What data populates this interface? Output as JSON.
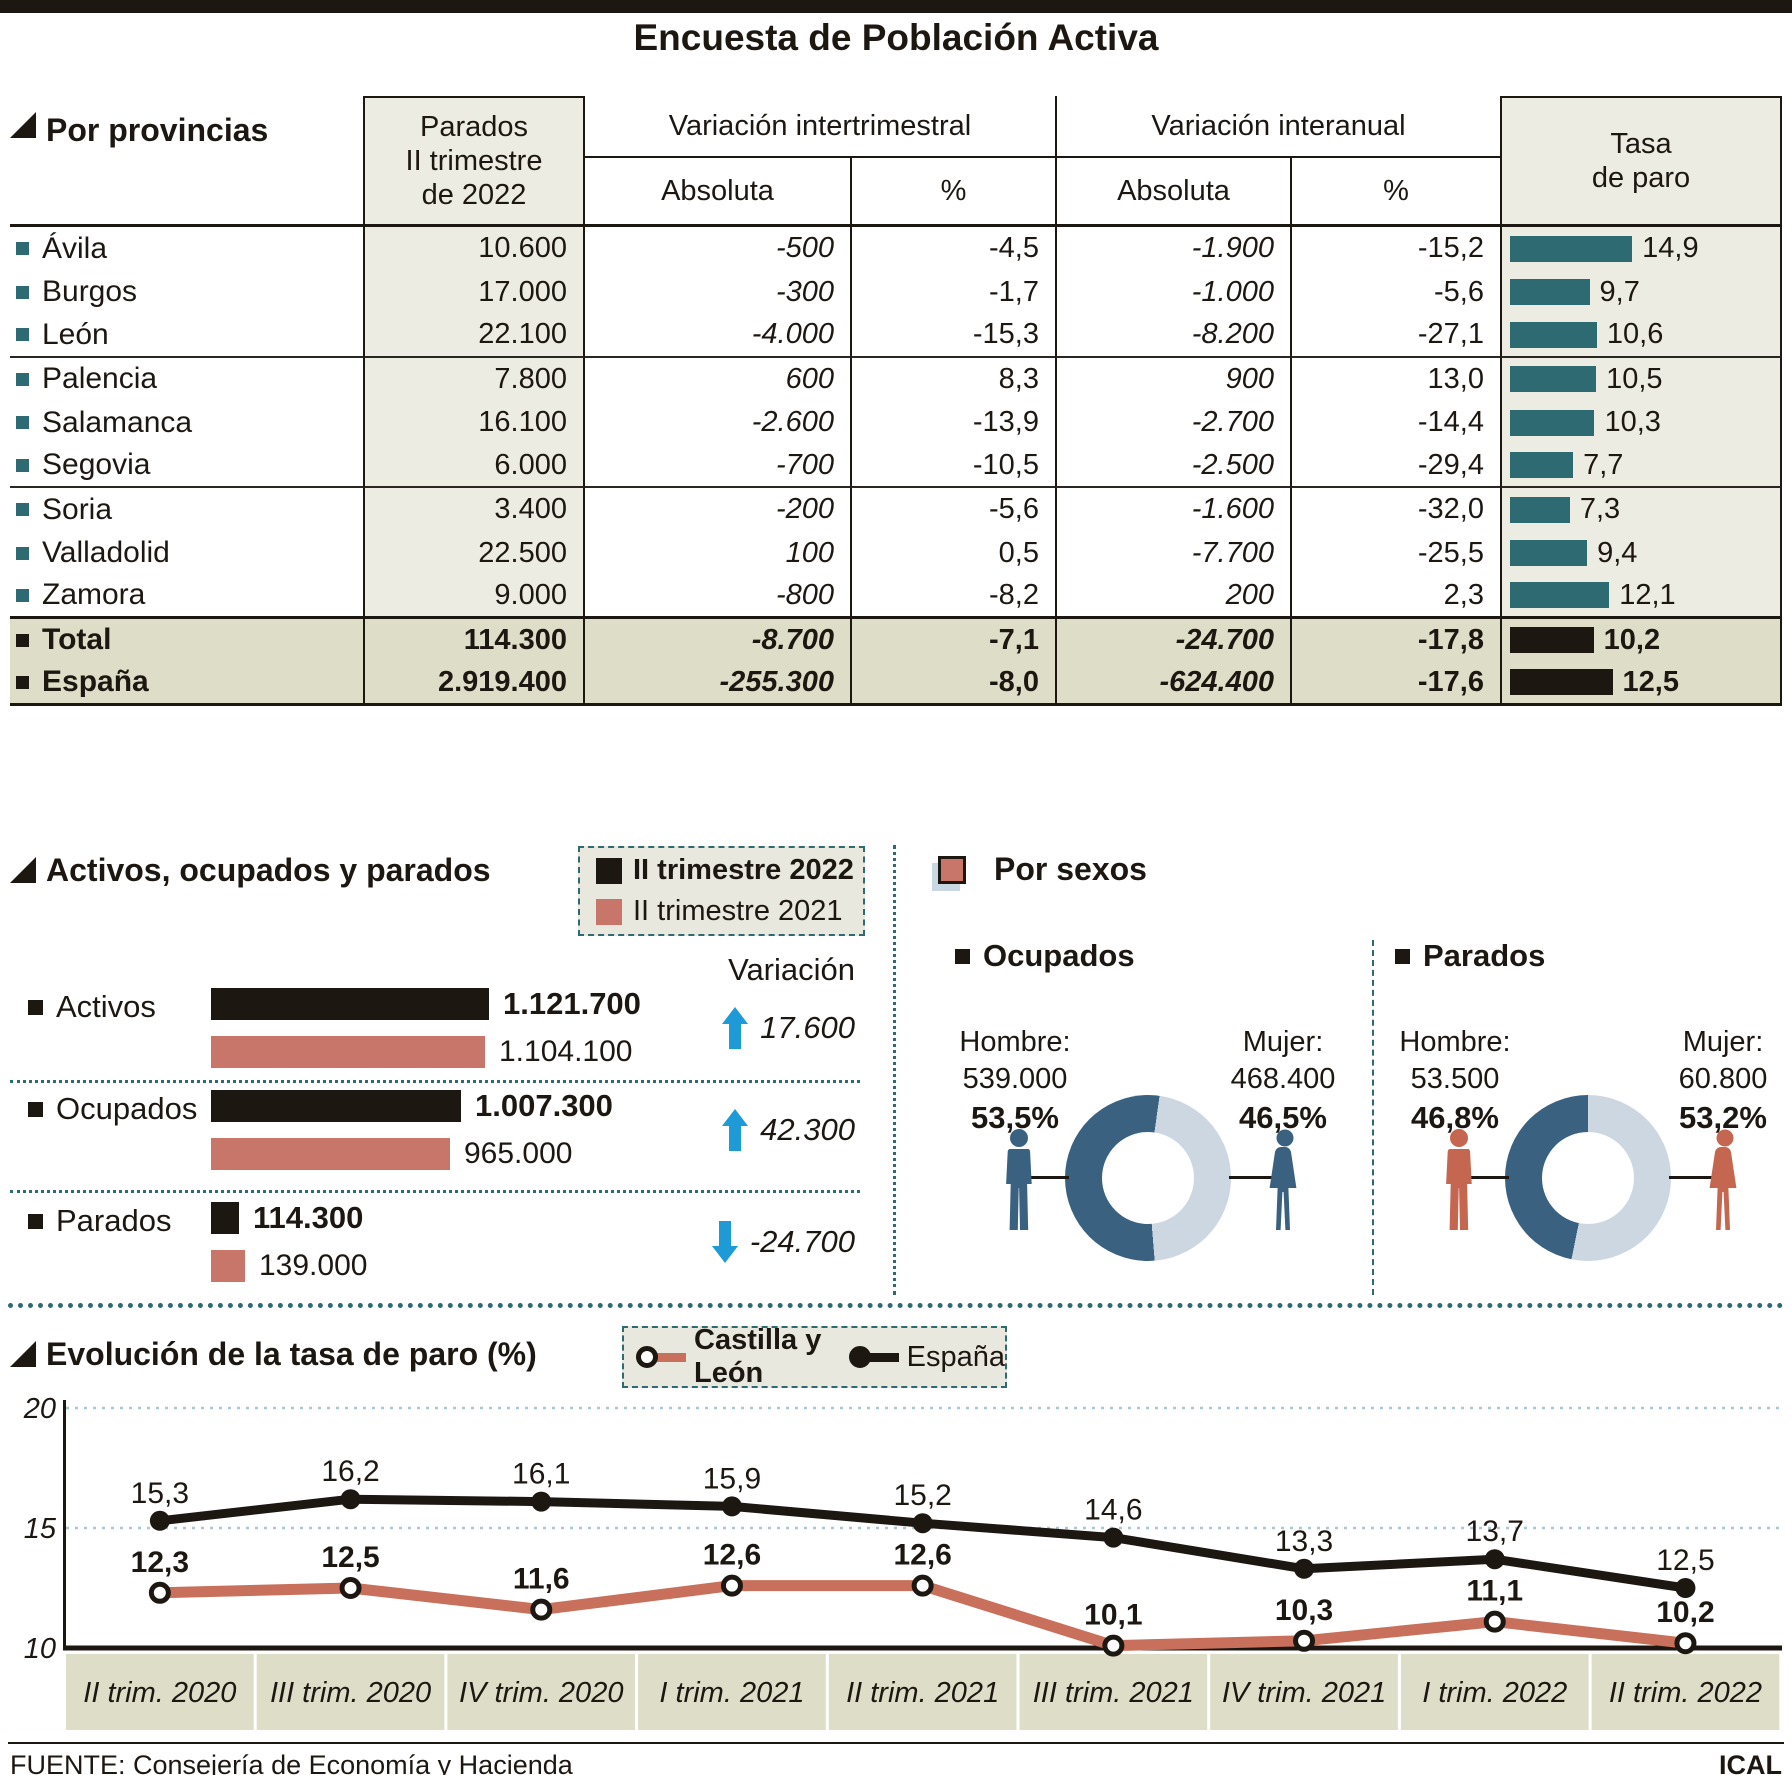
{
  "title": "Encuesta de Población Activa",
  "colors": {
    "ink": "#1d1712",
    "teal": "#2e6a71",
    "beige_light": "#edece2",
    "beige_dark": "#deddc7",
    "legend_bg": "#e9e8de",
    "salmon": "#c8766a",
    "salmon_line": "#c8705c",
    "donut_dark": "#3a6180",
    "donut_light": "#ccd7e1",
    "arrow_blue": "#1e9ad6",
    "grid_blue": "#a9c8d2",
    "silhouette_blue": "#3a6180",
    "silhouette_red": "#c56650"
  },
  "table": {
    "section_title": "Por provincias",
    "headers": {
      "parados": [
        "Parados",
        "II trimestre",
        "de 2022"
      ],
      "group_intertrimestral": "Variación intertrimestral",
      "group_interanual": "Variación interanual",
      "sub_absoluta": "Absoluta",
      "sub_pct": "%",
      "tasa": [
        "Tasa",
        "de paro"
      ]
    },
    "rows": [
      {
        "name": "Ávila",
        "parados": "10.600",
        "vt_abs": "-500",
        "vt_pct": "-4,5",
        "va_abs": "-1.900",
        "va_pct": "-15,2",
        "tasa": 14.9,
        "tasa_label": "14,9",
        "sep": "none",
        "total": false
      },
      {
        "name": "Burgos",
        "parados": "17.000",
        "vt_abs": "-300",
        "vt_pct": "-1,7",
        "va_abs": "-1.000",
        "va_pct": "-5,6",
        "tasa": 9.7,
        "tasa_label": "9,7",
        "sep": "none",
        "total": false
      },
      {
        "name": "León",
        "parados": "22.100",
        "vt_abs": "-4.000",
        "vt_pct": "-15,3",
        "va_abs": "-8.200",
        "va_pct": "-27,1",
        "tasa": 10.6,
        "tasa_label": "10,6",
        "sep": "thin",
        "total": false
      },
      {
        "name": "Palencia",
        "parados": "7.800",
        "vt_abs": "600",
        "vt_pct": "8,3",
        "va_abs": "900",
        "va_pct": "13,0",
        "tasa": 10.5,
        "tasa_label": "10,5",
        "sep": "none",
        "total": false
      },
      {
        "name": "Salamanca",
        "parados": "16.100",
        "vt_abs": "-2.600",
        "vt_pct": "-13,9",
        "va_abs": "-2.700",
        "va_pct": "-14,4",
        "tasa": 10.3,
        "tasa_label": "10,3",
        "sep": "none",
        "total": false
      },
      {
        "name": "Segovia",
        "parados": "6.000",
        "vt_abs": "-700",
        "vt_pct": "-10,5",
        "va_abs": "-2.500",
        "va_pct": "-29,4",
        "tasa": 7.7,
        "tasa_label": "7,7",
        "sep": "thin",
        "total": false
      },
      {
        "name": "Soria",
        "parados": "3.400",
        "vt_abs": "-200",
        "vt_pct": "-5,6",
        "va_abs": "-1.600",
        "va_pct": "-32,0",
        "tasa": 7.3,
        "tasa_label": "7,3",
        "sep": "none",
        "total": false
      },
      {
        "name": "Valladolid",
        "parados": "22.500",
        "vt_abs": "100",
        "vt_pct": "0,5",
        "va_abs": "-7.700",
        "va_pct": "-25,5",
        "tasa": 9.4,
        "tasa_label": "9,4",
        "sep": "none",
        "total": false
      },
      {
        "name": "Zamora",
        "parados": "9.000",
        "vt_abs": "-800",
        "vt_pct": "-8,2",
        "va_abs": "200",
        "va_pct": "2,3",
        "tasa": 12.1,
        "tasa_label": "12,1",
        "sep": "thick",
        "total": false
      },
      {
        "name": "Total",
        "parados": "114.300",
        "vt_abs": "-8.700",
        "vt_pct": "-7,1",
        "va_abs": "-24.700",
        "va_pct": "-17,8",
        "tasa": 10.2,
        "tasa_label": "10,2",
        "sep": "none",
        "total": true
      },
      {
        "name": "España",
        "parados": "2.919.400",
        "vt_abs": "-255.300",
        "vt_pct": "-8,0",
        "va_abs": "-624.400",
        "va_pct": "-17,6",
        "tasa": 12.5,
        "tasa_label": "12,5",
        "sep": "thick",
        "total": true
      }
    ]
  },
  "bars_section": {
    "title": "Activos, ocupados y parados",
    "legend": [
      {
        "label": "II trimestre 2022",
        "bold": true
      },
      {
        "label": "II trimestre 2021",
        "bold": false
      }
    ],
    "variation_heading": "Variación",
    "groups": [
      {
        "label": "Activos",
        "v2022": 1121700,
        "v2022_label": "1.121.700",
        "v2021": 1104100,
        "v2021_label": "1.104.100",
        "variation_label": "17.600",
        "dir": "up"
      },
      {
        "label": "Ocupados",
        "v2022": 1007300,
        "v2022_label": "1.007.300",
        "v2021": 965000,
        "v2021_label": "965.000",
        "variation_label": "42.300",
        "dir": "up"
      },
      {
        "label": "Parados",
        "v2022": 114300,
        "v2022_label": "114.300",
        "v2021": 139000,
        "v2021_label": "139.000",
        "variation_label": "-24.700",
        "dir": "down"
      }
    ]
  },
  "sexes": {
    "title": "Por sexos",
    "panels": [
      {
        "title": "Ocupados",
        "variant": "blue",
        "male": {
          "label": "Hombre:",
          "value": "539.000",
          "pct": 53.5,
          "pct_label": "53,5%"
        },
        "female": {
          "label": "Mujer:",
          "value": "468.400",
          "pct": 46.5,
          "pct_label": "46,5%"
        }
      },
      {
        "title": "Parados",
        "variant": "red",
        "male": {
          "label": "Hombre:",
          "value": "53.500",
          "pct": 46.8,
          "pct_label": "46,8%"
        },
        "female": {
          "label": "Mujer:",
          "value": "60.800",
          "pct": 53.2,
          "pct_label": "53,2%"
        }
      }
    ]
  },
  "evolution": {
    "title": "Evolución de la tasa de paro (%)",
    "legend": [
      {
        "label": "Castilla y León",
        "bold": true,
        "series": "cyl"
      },
      {
        "label": "España",
        "bold": false,
        "series": "esp"
      }
    ]
  },
  "chart_data": [
    {
      "id": "evolucion_tasa_paro",
      "type": "line",
      "title": "Evolución de la tasa de paro (%)",
      "categories": [
        "II trim. 2020",
        "III trim. 2020",
        "IV trim. 2020",
        "I trim. 2021",
        "II trim. 2021",
        "III trim. 2021",
        "IV trim. 2021",
        "I trim. 2022",
        "II trim. 2022"
      ],
      "series": [
        {
          "name": "España",
          "values": [
            15.3,
            16.2,
            16.1,
            15.9,
            15.2,
            14.6,
            13.3,
            13.7,
            12.5
          ],
          "labels": [
            "15,3",
            "16,2",
            "16,1",
            "15,9",
            "15,2",
            "14,6",
            "13,3",
            "13,7",
            "12,5"
          ],
          "color": "#1d1712",
          "marker": "solid"
        },
        {
          "name": "Castilla y León",
          "values": [
            12.3,
            12.5,
            11.6,
            12.6,
            12.6,
            10.1,
            10.3,
            11.1,
            10.2
          ],
          "labels": [
            "12,3",
            "12,5",
            "11,6",
            "12,6",
            "12,6",
            "10,1",
            "10,3",
            "11,1",
            "10,2"
          ],
          "color": "#c8705c",
          "marker": "open"
        }
      ],
      "ylim": [
        10,
        20
      ],
      "yticks": [
        20,
        15,
        10
      ],
      "ytick_labels": [
        "20",
        "15",
        "10"
      ],
      "grid": "horizontal dotted at 15 and 20",
      "legend_position": "top"
    },
    {
      "id": "activos_ocupados_parados",
      "type": "bar",
      "categories": [
        "Activos",
        "Ocupados",
        "Parados"
      ],
      "series": [
        {
          "name": "II trimestre 2022",
          "values": [
            1121700,
            1007300,
            114300
          ]
        },
        {
          "name": "II trimestre 2021",
          "values": [
            1104100,
            965000,
            139000
          ]
        }
      ],
      "variations": [
        17600,
        42300,
        -24700
      ]
    },
    {
      "id": "ocupados_por_sexo",
      "type": "pie",
      "labels": [
        "Hombre",
        "Mujer"
      ],
      "values": [
        53.5,
        46.5
      ],
      "counts": [
        539000,
        468400
      ]
    },
    {
      "id": "parados_por_sexo",
      "type": "pie",
      "labels": [
        "Hombre",
        "Mujer"
      ],
      "values": [
        46.8,
        53.2
      ],
      "counts": [
        53500,
        60800
      ]
    },
    {
      "id": "tasa_de_paro_provincias",
      "type": "bar",
      "categories": [
        "Ávila",
        "Burgos",
        "León",
        "Palencia",
        "Salamanca",
        "Segovia",
        "Soria",
        "Valladolid",
        "Zamora",
        "Total",
        "España"
      ],
      "values": [
        14.9,
        9.7,
        10.6,
        10.5,
        10.3,
        7.7,
        7.3,
        9.4,
        12.1,
        10.2,
        12.5
      ]
    }
  ],
  "footer": {
    "source": "FUENTE: Consejería de Economía y Hacienda",
    "credit": "ICAL"
  }
}
